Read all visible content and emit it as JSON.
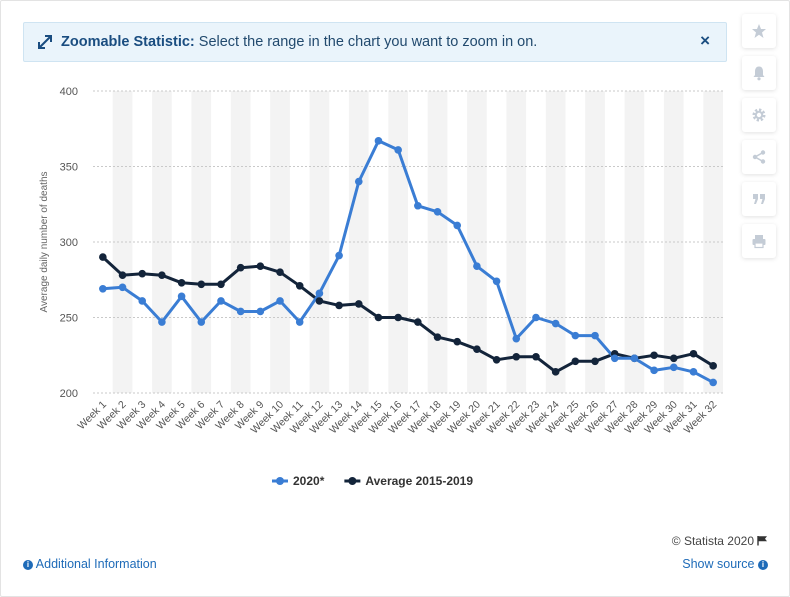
{
  "banner": {
    "title": "Zoomable Statistic:",
    "text": "Select the range in the chart you want to zoom in on.",
    "close": "×"
  },
  "sidebar": {
    "icons": [
      "star-icon",
      "bell-icon",
      "gear-icon",
      "share-icon",
      "quote-icon",
      "print-icon"
    ]
  },
  "footer": {
    "copyright": "© Statista 2020",
    "additional_info": "Additional Information",
    "show_source": "Show source"
  },
  "colors": {
    "series_2020": "#3a7dd4",
    "series_avg": "#13243a",
    "grid_band": "#f3f3f3",
    "link": "#1e6bb8"
  },
  "chart_data": {
    "type": "line",
    "title": "",
    "xlabel": "",
    "ylabel": "Average daily number of deaths",
    "ylim": [
      200,
      400
    ],
    "yticks": [
      200,
      250,
      300,
      350,
      400
    ],
    "grid": true,
    "legend": "bottom",
    "categories": [
      "Week 1",
      "Week 2",
      "Week 3",
      "Week 4",
      "Week 5",
      "Week 6",
      "Week 7",
      "Week 8",
      "Week 9",
      "Week 10",
      "Week 11",
      "Week 12",
      "Week 13",
      "Week 14",
      "Week 15",
      "Week 16",
      "Week 17",
      "Week 18",
      "Week 19",
      "Week 20",
      "Week 21",
      "Week 22",
      "Week 23",
      "Week 24",
      "Week 25",
      "Week 26",
      "Week 27",
      "Week 28",
      "Week 29",
      "Week 30",
      "Week 31",
      "Week 32"
    ],
    "series": [
      {
        "name": "2020*",
        "color": "#3a7dd4",
        "values": [
          269,
          270,
          261,
          247,
          264,
          247,
          261,
          254,
          254,
          261,
          247,
          266,
          291,
          340,
          367,
          361,
          324,
          320,
          311,
          284,
          274,
          236,
          250,
          246,
          238,
          238,
          223,
          223,
          215,
          217,
          214,
          207
        ]
      },
      {
        "name": "Average 2015-2019",
        "color": "#13243a",
        "values": [
          290,
          278,
          279,
          278,
          273,
          272,
          272,
          283,
          284,
          280,
          271,
          261,
          258,
          259,
          250,
          250,
          247,
          237,
          234,
          229,
          222,
          224,
          224,
          214,
          221,
          221,
          226,
          223,
          225,
          223,
          226,
          218
        ]
      }
    ]
  }
}
